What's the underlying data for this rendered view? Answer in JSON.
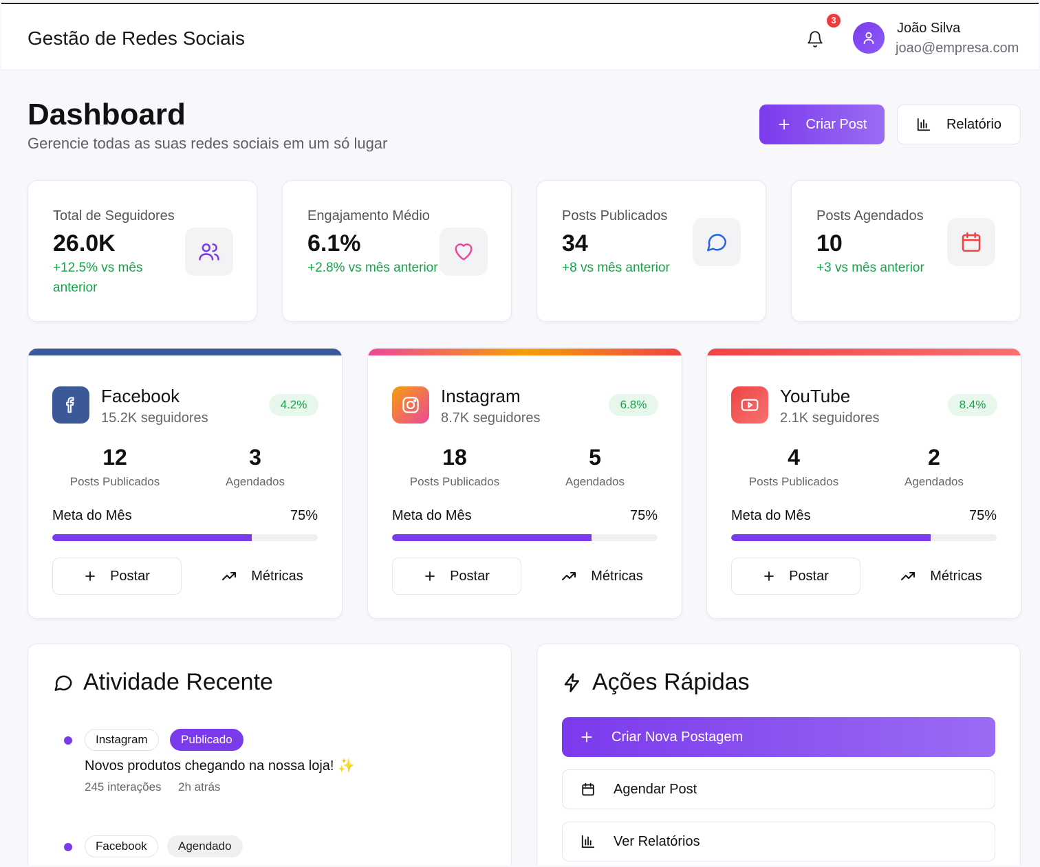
{
  "header": {
    "app_title": "Gestão de Redes Sociais",
    "notification_count": "3",
    "user_name": "João Silva",
    "user_email": "joao@empresa.com"
  },
  "page": {
    "title": "Dashboard",
    "subtitle": "Gerencie todas as suas redes sociais em um só lugar",
    "create_post_label": "Criar Post",
    "report_label": "Relatório"
  },
  "stats": [
    {
      "label": "Total de Seguidores",
      "value": "26.0K",
      "delta": "+12.5% vs mês anterior",
      "icon": "users-icon"
    },
    {
      "label": "Engajamento Médio",
      "value": "6.1%",
      "delta": "+2.8% vs mês anterior",
      "icon": "heart-icon"
    },
    {
      "label": "Posts Publicados",
      "value": "34",
      "delta": "+8 vs mês anterior",
      "icon": "message-circle-icon"
    },
    {
      "label": "Posts Agendados",
      "value": "10",
      "delta": "+3 vs mês anterior",
      "icon": "calendar-icon"
    }
  ],
  "platforms": [
    {
      "name": "Facebook",
      "followers": "15.2K seguidores",
      "rate": "4.2%",
      "posts": "12",
      "posts_label": "Posts Publicados",
      "scheduled": "3",
      "scheduled_label": "Agendados",
      "goal_label": "Meta do Mês",
      "goal_pct": "75%",
      "goal_fraction": 0.75,
      "post_btn": "Postar",
      "metrics_btn": "Métricas",
      "icon": "facebook-icon",
      "color": "#3b5998"
    },
    {
      "name": "Instagram",
      "followers": "8.7K seguidores",
      "rate": "6.8%",
      "posts": "18",
      "posts_label": "Posts Publicados",
      "scheduled": "5",
      "scheduled_label": "Agendados",
      "goal_label": "Meta do Mês",
      "goal_pct": "75%",
      "goal_fraction": 0.75,
      "post_btn": "Postar",
      "metrics_btn": "Métricas",
      "icon": "instagram-icon",
      "color": "#e1306c"
    },
    {
      "name": "YouTube",
      "followers": "2.1K seguidores",
      "rate": "8.4%",
      "posts": "4",
      "posts_label": "Posts Publicados",
      "scheduled": "2",
      "scheduled_label": "Agendados",
      "goal_label": "Meta do Mês",
      "goal_pct": "75%",
      "goal_fraction": 0.75,
      "post_btn": "Postar",
      "metrics_btn": "Métricas",
      "icon": "youtube-icon",
      "color": "#ef4444"
    }
  ],
  "activity": {
    "title": "Atividade Recente",
    "items": [
      {
        "platform": "Instagram",
        "status": "Publicado",
        "text": "Novos produtos chegando na nossa loja! ✨",
        "interactions": "245 interações",
        "time": "2h atrás"
      },
      {
        "platform": "Facebook",
        "status": "Agendado"
      }
    ]
  },
  "quick_actions": {
    "title": "Ações Rápidas",
    "items": [
      {
        "label": "Criar Nova Postagem",
        "icon": "plus-icon"
      },
      {
        "label": "Agendar Post",
        "icon": "calendar-icon"
      },
      {
        "label": "Ver Relatórios",
        "icon": "bar-chart-icon"
      }
    ]
  },
  "colors": {
    "accent": "#7c3aed",
    "positive": "#16a34a",
    "danger": "#ef4444"
  }
}
